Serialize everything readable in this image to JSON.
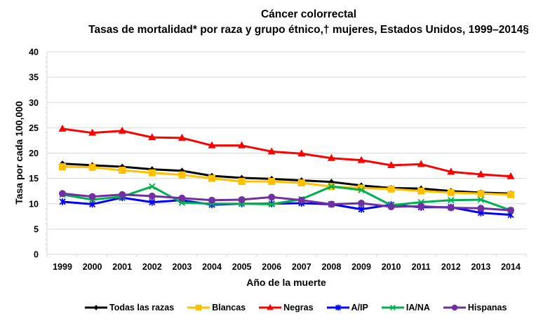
{
  "chart_data": {
    "type": "line",
    "title": "Cáncer colorrectal",
    "subtitle": "Tasas de mortalidad* por raza y grupo étnico,† mujeres, Estados Unidos, 1999–2014§",
    "xlabel": "Año de la muerte",
    "ylabel": "Tasa por cada 100,000",
    "ylim": [
      0,
      40
    ],
    "yticks": [
      0,
      5,
      10,
      15,
      20,
      25,
      30,
      35,
      40
    ],
    "grid": true,
    "legend_position": "bottom",
    "categories": [
      "1999",
      "2000",
      "2001",
      "2002",
      "2003",
      "2004",
      "2005",
      "2006",
      "2007",
      "2008",
      "2009",
      "2010",
      "2011",
      "2012",
      "2013",
      "2014"
    ],
    "series": [
      {
        "name": "Todas las razas",
        "color": "#000000",
        "marker": "diamond",
        "values": [
          17.9,
          17.6,
          17.3,
          16.8,
          16.5,
          15.5,
          15.1,
          14.9,
          14.6,
          14.3,
          13.6,
          13.1,
          13.0,
          12.5,
          12.2,
          12.0
        ]
      },
      {
        "name": "Blancas",
        "color": "#FFC000",
        "marker": "square",
        "values": [
          17.3,
          17.2,
          16.6,
          16.1,
          15.7,
          15.0,
          14.4,
          14.4,
          14.1,
          13.4,
          13.1,
          12.9,
          12.5,
          12.2,
          12.0,
          11.8
        ]
      },
      {
        "name": "Negras",
        "color": "#FF0000",
        "marker": "triangle",
        "values": [
          24.8,
          24.0,
          24.4,
          23.1,
          23.0,
          21.5,
          21.5,
          20.3,
          19.9,
          19.0,
          18.6,
          17.6,
          17.8,
          16.3,
          15.8,
          15.4
        ]
      },
      {
        "name": "A/IP",
        "color": "#0000FF",
        "marker": "star",
        "values": [
          10.4,
          9.9,
          11.2,
          10.3,
          10.7,
          9.8,
          10.0,
          10.0,
          10.1,
          9.9,
          8.9,
          9.8,
          9.3,
          9.3,
          8.2,
          7.8
        ]
      },
      {
        "name": "IA/NA",
        "color": "#00B050",
        "marker": "x",
        "values": [
          11.8,
          10.8,
          11.4,
          13.4,
          10.2,
          10.0,
          10.0,
          9.9,
          10.9,
          13.4,
          12.7,
          9.7,
          10.3,
          10.7,
          10.8,
          8.7
        ]
      },
      {
        "name": "Hispanas",
        "color": "#7030A0",
        "marker": "circle",
        "values": [
          12.0,
          11.4,
          11.8,
          11.5,
          11.1,
          10.7,
          10.8,
          11.3,
          10.7,
          9.9,
          10.1,
          9.4,
          9.5,
          9.2,
          9.1,
          8.7
        ]
      }
    ]
  }
}
